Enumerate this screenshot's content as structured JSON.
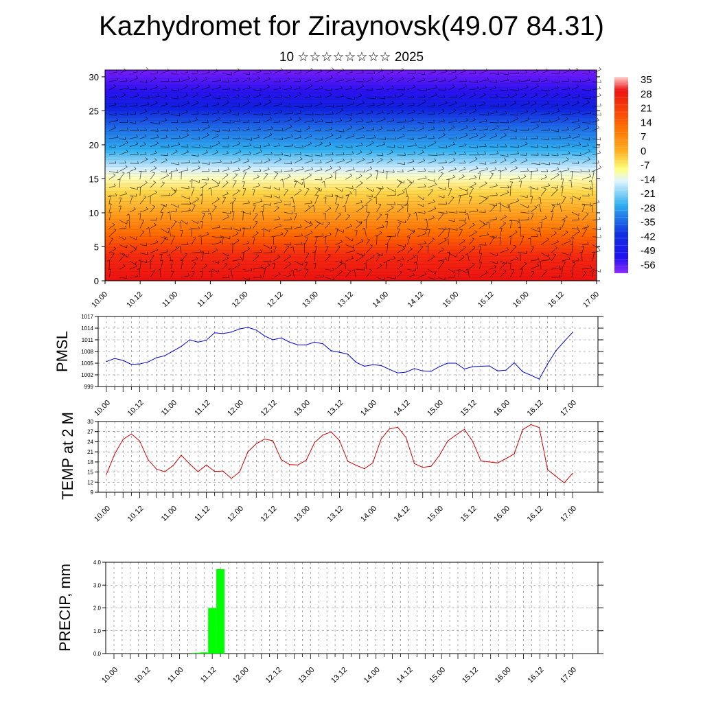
{
  "header": {
    "title": "Kazhydromet for Ziraynovsk(49.07 84.31)",
    "subtitle": "10 ☆☆☆☆☆☆☆☆ 2025"
  },
  "chart_data": [
    {
      "type": "heatmap",
      "title": "",
      "x_ticks": [
        "10.00",
        "10.12",
        "11.00",
        "11.12",
        "12.00",
        "12.12",
        "13.00",
        "13.12",
        "14.00",
        "14.12",
        "15.00",
        "15.12",
        "16.00",
        "16.12",
        "17.00"
      ],
      "y_ticks": [
        "0",
        "5",
        "10",
        "15",
        "20",
        "25",
        "30"
      ],
      "ylim": [
        0,
        31
      ],
      "colorbar_labels": [
        "35",
        "28",
        "21",
        "14",
        "7",
        "0",
        "-7",
        "-14",
        "-21",
        "-28",
        "-35",
        "-42",
        "-49",
        "-56"
      ],
      "colors": {
        "hot": "#ee1111",
        "warm": "#ff8800",
        "mild": "#ffe060",
        "neutral": "#ffffc0",
        "cool": "#30b0f0",
        "cold": "#1020e0",
        "coldest": "#7a1cff"
      },
      "profile": [
        {
          "height": 0,
          "temperature": 24
        },
        {
          "height": 5,
          "temperature": 19
        },
        {
          "height": 10,
          "temperature": 8
        },
        {
          "height": 14,
          "temperature": -7
        },
        {
          "height": 15.5,
          "temperature": -13
        },
        {
          "height": 19,
          "temperature": -27
        },
        {
          "height": 24,
          "temperature": -47
        },
        {
          "height": 27,
          "temperature": -55
        },
        {
          "height": 31,
          "temperature": -58
        }
      ]
    },
    {
      "type": "line",
      "ylabel": "PMSL",
      "color": "#0000cc",
      "x_ticks": [
        "10.00",
        "10.12",
        "11.00",
        "11.12",
        "12.00",
        "12.12",
        "13.00",
        "13.12",
        "14.00",
        "14.12",
        "15.00",
        "15.12",
        "16.00",
        "16.12",
        "17.00"
      ],
      "y_ticks": [
        "1017",
        "1014",
        "1011",
        "1008",
        "1005",
        "1002",
        "999"
      ],
      "ylim": [
        999,
        1017
      ],
      "values": [
        1005.4,
        1006.2,
        1005.7,
        1004.7,
        1004.8,
        1005.3,
        1006.4,
        1006.9,
        1008.1,
        1009.3,
        1011.0,
        1010.4,
        1010.9,
        1012.8,
        1012.6,
        1013.0,
        1013.8,
        1014.2,
        1013.5,
        1012.0,
        1011.0,
        1011.5,
        1010.4,
        1009.7,
        1009.7,
        1010.4,
        1010.0,
        1008.2,
        1007.8,
        1007.3,
        1005.2,
        1004.2,
        1004.6,
        1004.4,
        1003.4,
        1002.5,
        1002.7,
        1003.6,
        1003.0,
        1002.9,
        1004.1,
        1005.0,
        1005.0,
        1003.5,
        1004.1,
        1004.2,
        1004.3,
        1003.0,
        1003.2,
        1005.1,
        1002.8,
        1001.9,
        1000.9,
        1004.8,
        1008.2,
        1010.6,
        1012.9
      ]
    },
    {
      "type": "line",
      "ylabel": "TEMP at 2 M",
      "color": "#cc0000",
      "x_ticks": [
        "10.00",
        "10.12",
        "11.00",
        "11.12",
        "12.00",
        "12.12",
        "13.00",
        "13.12",
        "14.00",
        "14.12",
        "15.00",
        "15.12",
        "16.00",
        "16.12",
        "17.00"
      ],
      "y_ticks": [
        "30",
        "27",
        "24",
        "21",
        "18",
        "15",
        "12",
        "9"
      ],
      "ylim": [
        9,
        30
      ],
      "values": [
        14.3,
        20.4,
        24.7,
        26.3,
        24.2,
        18.7,
        15.9,
        15.1,
        16.9,
        20.0,
        17.4,
        15.1,
        17.1,
        15.2,
        15.3,
        13.1,
        15.0,
        21.0,
        23.4,
        24.8,
        24.3,
        18.7,
        17.2,
        17.1,
        18.5,
        23.7,
        26.0,
        26.9,
        24.4,
        18.2,
        17.0,
        16.0,
        17.7,
        24.8,
        27.8,
        28.3,
        25.2,
        17.5,
        16.4,
        16.7,
        19.9,
        24.2,
        26.0,
        27.7,
        24.1,
        18.3,
        18.0,
        17.7,
        19.0,
        20.4,
        27.6,
        29.1,
        28.2,
        15.7,
        13.7,
        11.8,
        14.6
      ]
    },
    {
      "type": "bar",
      "ylabel": "PRECIP, mm",
      "color": "#00ff00",
      "x_ticks": [
        "10.00",
        "10.12",
        "11.00",
        "11.12",
        "12.00",
        "12.12",
        "13.00",
        "13.12",
        "14.00",
        "14.12",
        "15.00",
        "15.12",
        "16.00",
        "16.12",
        "17.00"
      ],
      "y_ticks": [
        "4.0",
        "3.0",
        "2.0",
        "1.0",
        "0.0"
      ],
      "ylim": [
        0,
        4
      ],
      "values": [
        0,
        0,
        0,
        0,
        0,
        0,
        0,
        0,
        0,
        0,
        0.03,
        0.05,
        2.0,
        3.7,
        0,
        0,
        0,
        0,
        0,
        0,
        0,
        0,
        0,
        0,
        0,
        0,
        0,
        0,
        0,
        0,
        0,
        0,
        0,
        0,
        0,
        0,
        0,
        0,
        0,
        0,
        0,
        0,
        0,
        0,
        0,
        0,
        0,
        0,
        0,
        0,
        0,
        0,
        0,
        0,
        0,
        0,
        0
      ]
    }
  ]
}
